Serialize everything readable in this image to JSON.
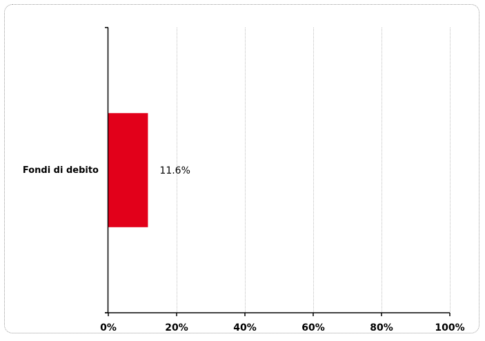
{
  "chart_data": {
    "type": "bar",
    "orientation": "horizontal",
    "categories": [
      "Fondi di debito"
    ],
    "values": [
      11.6
    ],
    "data_labels": [
      "11.6%"
    ],
    "xlim": [
      0,
      100
    ],
    "xticks": [
      0,
      20,
      40,
      60,
      80,
      100
    ],
    "xtick_labels": [
      "0%",
      "20%",
      "40%",
      "60%",
      "80%",
      "100%"
    ],
    "title": "",
    "xlabel": "",
    "ylabel": "",
    "grid": true,
    "legend": "none",
    "colors": {
      "bar": "#e2001a",
      "grid": "#bfbfbf",
      "axis": "#000000"
    }
  }
}
